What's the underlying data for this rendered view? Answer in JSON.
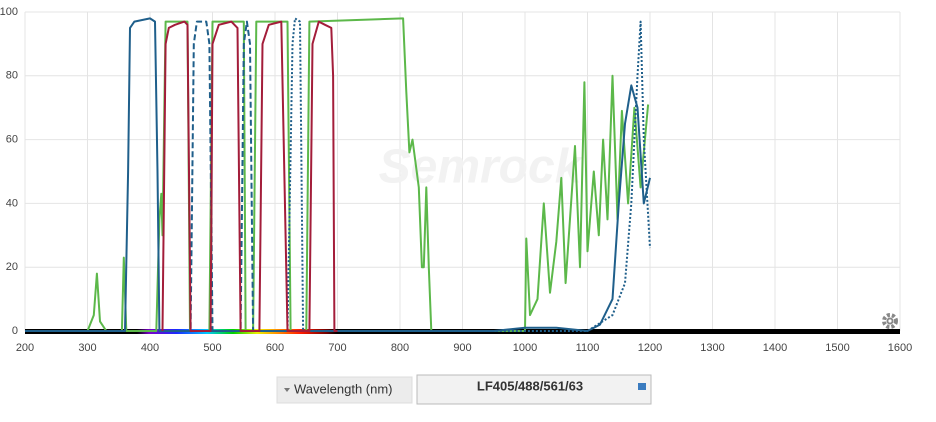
{
  "chart_data": {
    "type": "line",
    "title": "LF405/488/561/63",
    "x_label": "Wavelength (nm)",
    "watermark": "Semrock",
    "xlim": [
      200,
      1600
    ],
    "xticks": [
      200,
      300,
      400,
      500,
      600,
      700,
      800,
      900,
      1000,
      1100,
      1200,
      1300,
      1400,
      1500,
      1600
    ],
    "ylim": [
      0,
      100
    ],
    "yticks": [
      0,
      20,
      40,
      60,
      80,
      100
    ],
    "grid": true,
    "series": [
      {
        "color": "#5cb84a",
        "dash": "solid",
        "x": [
          200,
          300,
          310,
          315,
          320,
          330,
          355,
          358,
          362,
          410,
          415,
          418,
          420,
          425,
          460,
          464,
          495,
          500,
          550,
          553,
          565,
          570,
          620,
          625,
          650,
          655,
          805,
          810,
          815,
          820,
          830,
          835,
          838,
          842,
          846,
          850,
          1000,
          1002,
          1008,
          1020,
          1030,
          1040,
          1050,
          1058,
          1065,
          1080,
          1088,
          1095,
          1100,
          1110,
          1118,
          1125,
          1132,
          1140,
          1148,
          1155,
          1165,
          1175,
          1185,
          1197
        ],
        "values": [
          0,
          0,
          5,
          18,
          3,
          0,
          0,
          23,
          0,
          0,
          35,
          43,
          30,
          97,
          97,
          0,
          0,
          97,
          97,
          0,
          0,
          97,
          97,
          0,
          0,
          97,
          98,
          75,
          56,
          60,
          45,
          20,
          20,
          45,
          20,
          0,
          0,
          29,
          5,
          10,
          40,
          12,
          28,
          48,
          15,
          58,
          20,
          78,
          25,
          50,
          30,
          60,
          35,
          80,
          35,
          69,
          40,
          70,
          45,
          71
        ]
      },
      {
        "color": "#1f5f8b",
        "dash": "solid",
        "x": [
          200,
          360,
          365,
          368,
          375,
          400,
          408,
          412,
          415,
          950,
          1000,
          1050,
          1100,
          1120,
          1140,
          1150,
          1160,
          1170,
          1180,
          1190,
          1200
        ],
        "values": [
          0,
          0,
          50,
          95,
          97,
          98,
          97,
          50,
          0,
          0,
          1,
          1,
          0,
          2,
          10,
          40,
          65,
          77,
          70,
          40,
          48
        ]
      },
      {
        "color": "#1f5f8b",
        "dash": "dashed",
        "x": [
          455,
          465,
          470,
          475,
          490,
          495,
          500,
          545,
          550,
          555,
          560,
          565
        ],
        "values": [
          0,
          0,
          90,
          97,
          97,
          90,
          0,
          0,
          90,
          97,
          90,
          0
        ]
      },
      {
        "color": "#1f5f8b",
        "dash": "dotted",
        "x": [
          615,
          620,
          628,
          632,
          640,
          645,
          1100,
          1140,
          1160,
          1170,
          1180,
          1185,
          1190,
          1200
        ],
        "values": [
          0,
          0,
          90,
          98,
          97,
          0,
          0,
          5,
          15,
          40,
          80,
          97,
          60,
          26
        ]
      },
      {
        "color": "#a31d3a",
        "dash": "solid",
        "x": [
          420,
          425,
          430,
          440,
          455,
          460,
          465,
          497,
          500,
          510,
          530,
          540,
          545,
          575,
          580,
          590,
          610,
          620,
          655,
          660,
          670,
          680,
          690,
          693,
          695,
          700
        ],
        "values": [
          0,
          90,
          95,
          96,
          97,
          96,
          0,
          0,
          90,
          96,
          97,
          95,
          0,
          0,
          90,
          96,
          97,
          0,
          0,
          90,
          97,
          96,
          95,
          80,
          0,
          0
        ]
      }
    ]
  }
}
